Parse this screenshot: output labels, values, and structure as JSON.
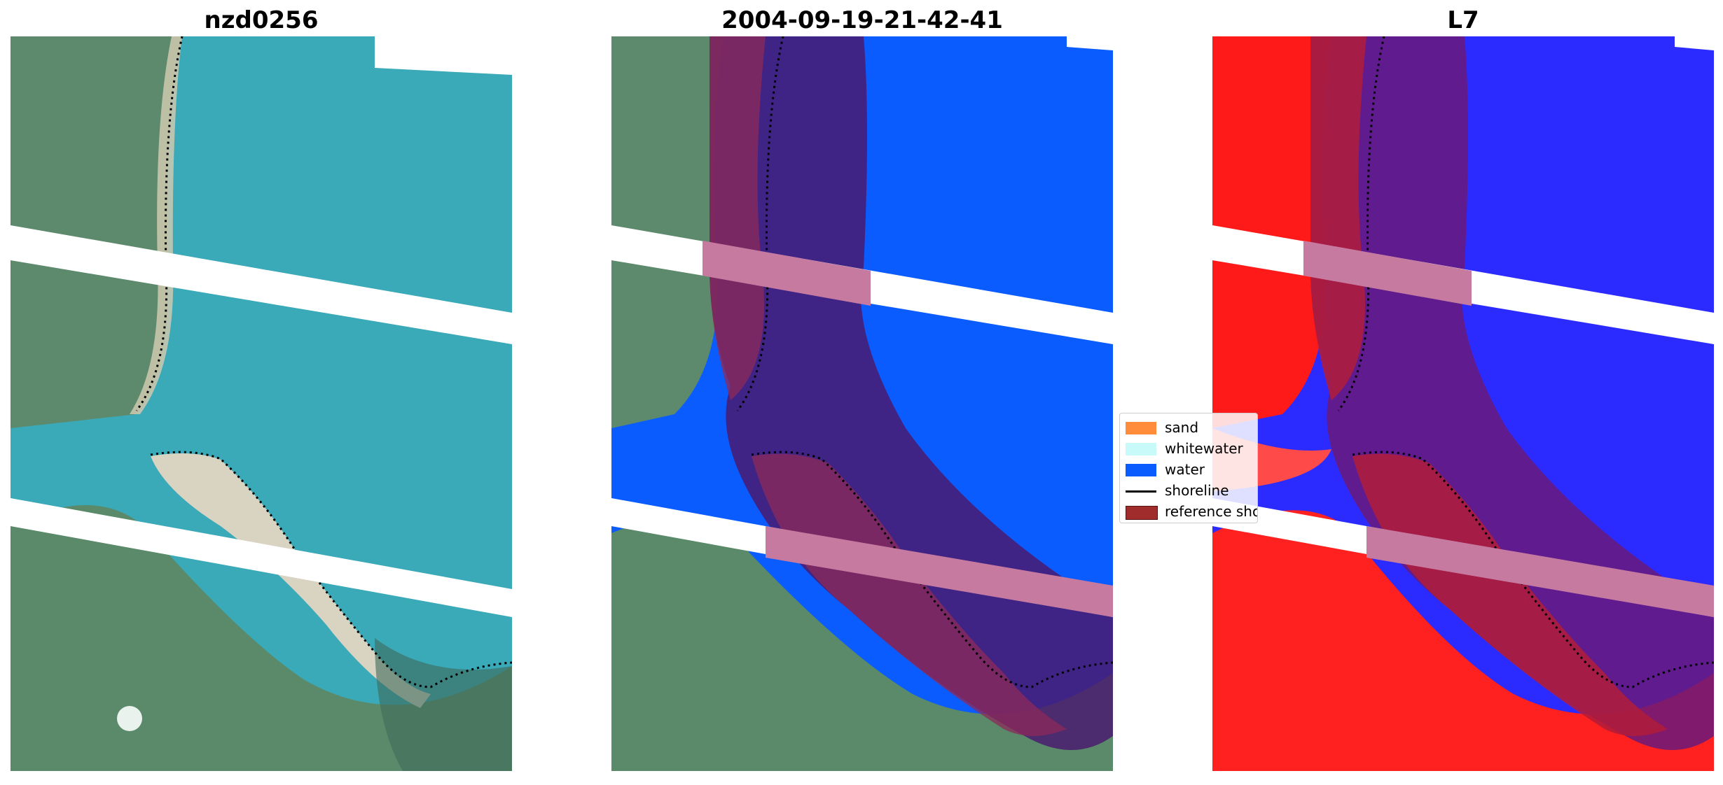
{
  "panels": [
    {
      "title": "nzd0256"
    },
    {
      "title": "2004-09-19-21-42-41"
    },
    {
      "title": "L7"
    }
  ],
  "legend": {
    "items": [
      {
        "label": "sand",
        "color": "#ff8c3a"
      },
      {
        "label": "whitewater",
        "color": "#c8fafa"
      },
      {
        "label": "water",
        "color": "#0a5cff"
      },
      {
        "label": "shoreline",
        "color": "#000000"
      },
      {
        "label": "reference shoreline",
        "color": "#a02c2c"
      }
    ]
  },
  "colors": {
    "water_rgb": "#3aa9b8",
    "land_rgb": "#5d8a6c",
    "sand_rgb": "#d9d3c2",
    "classified_water": "#0a5cff",
    "buffer_overlay": "#7a1f4a",
    "nodata_stripe": "#ffffff",
    "index_water": "#2b2bff",
    "index_land": "#ff1a1a"
  }
}
